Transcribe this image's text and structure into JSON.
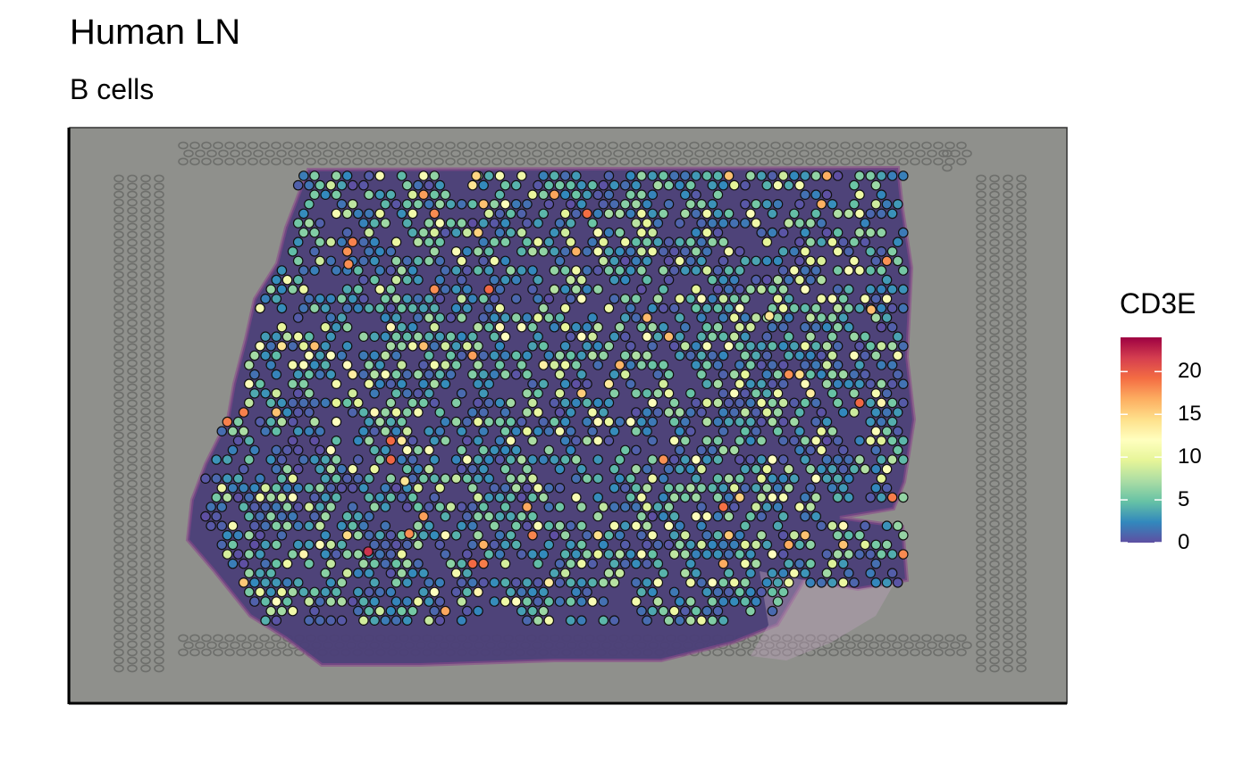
{
  "chart_data": {
    "type": "scatter",
    "title": "Human LN",
    "subtitle": "B cells",
    "legend": {
      "title": "CD3E",
      "ticks": [
        0,
        5,
        10,
        15,
        20
      ],
      "tick_labels": [
        "0",
        "5",
        "10",
        "15",
        "20"
      ],
      "range": [
        0,
        24
      ],
      "placement": "right",
      "palette": [
        "#5E4FA2",
        "#3288BD",
        "#66C2A5",
        "#ABDDA4",
        "#E6F598",
        "#FFFFBF",
        "#FEE08B",
        "#FDAE61",
        "#F46D43",
        "#D53E4F",
        "#9E0142"
      ]
    },
    "background": "tissue histology image",
    "n_spots_approx": 1400
  }
}
